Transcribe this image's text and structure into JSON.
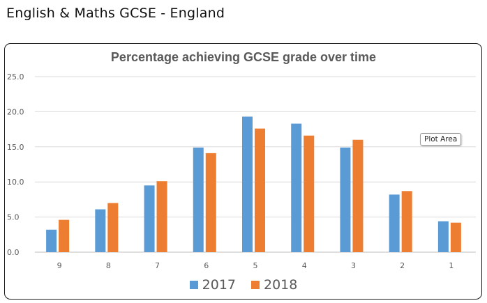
{
  "page": {
    "heading": "English & Maths GCSE - England"
  },
  "tooltip": {
    "text": "Plot Area"
  },
  "chart_data": {
    "type": "bar",
    "title": "Percentage achieving GCSE grade over time",
    "xlabel": "",
    "ylabel": "",
    "categories": [
      "9",
      "8",
      "7",
      "6",
      "5",
      "4",
      "3",
      "2",
      "1"
    ],
    "series": [
      {
        "name": "2017",
        "color": "#5b9bd5",
        "values": [
          3.2,
          6.1,
          9.5,
          14.9,
          19.3,
          18.3,
          14.9,
          8.2,
          4.4
        ]
      },
      {
        "name": "2018",
        "color": "#ed7d31",
        "values": [
          4.6,
          7.0,
          10.1,
          14.1,
          17.6,
          16.6,
          16.0,
          8.7,
          4.2
        ]
      }
    ],
    "ylim": [
      0,
      25
    ],
    "yticks": [
      "0.0",
      "5.0",
      "10.0",
      "15.0",
      "20.0",
      "25.0"
    ],
    "grid": true,
    "legend": "bottom"
  }
}
